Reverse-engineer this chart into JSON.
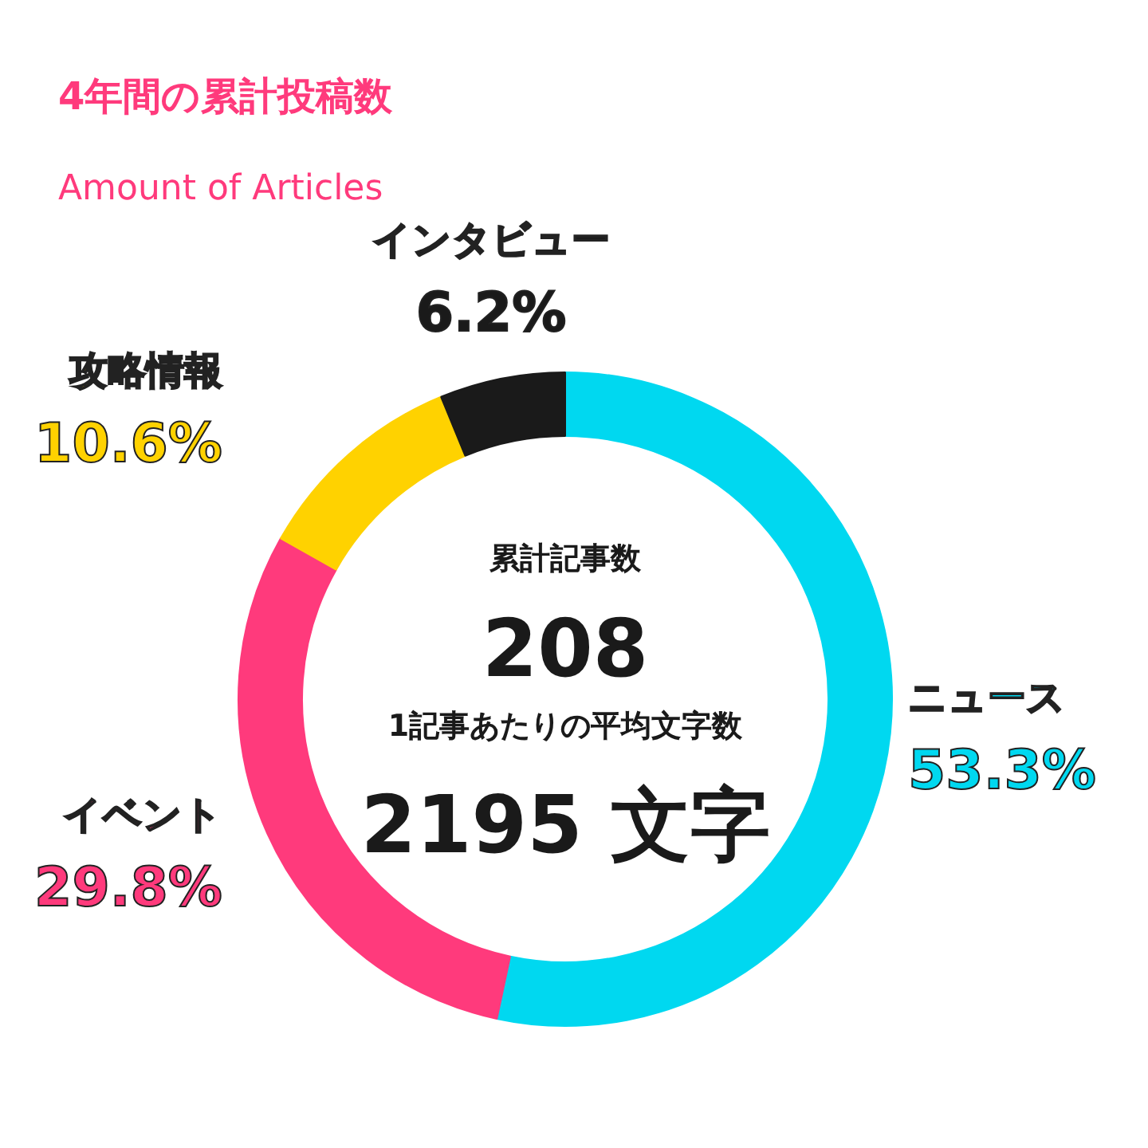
{
  "chart_data": {
    "type": "donut",
    "title": "4年間の累計投稿数",
    "subtitle": "Amount of Articles",
    "categories": [
      "ニュース",
      "イベント",
      "攻略情報",
      "インタビュー"
    ],
    "values": [
      53.3,
      29.8,
      10.6,
      6.2
    ],
    "colors": [
      "#00d8f0",
      "#ff3a7c",
      "#ffd200",
      "#1a1a1a"
    ],
    "value_labels": [
      "53.3%",
      "29.8%",
      "10.6%",
      "6.2%"
    ],
    "annotations": [
      "累計記事数",
      "208",
      "1記事あたりの平均文字数",
      "2195 文字"
    ]
  }
}
